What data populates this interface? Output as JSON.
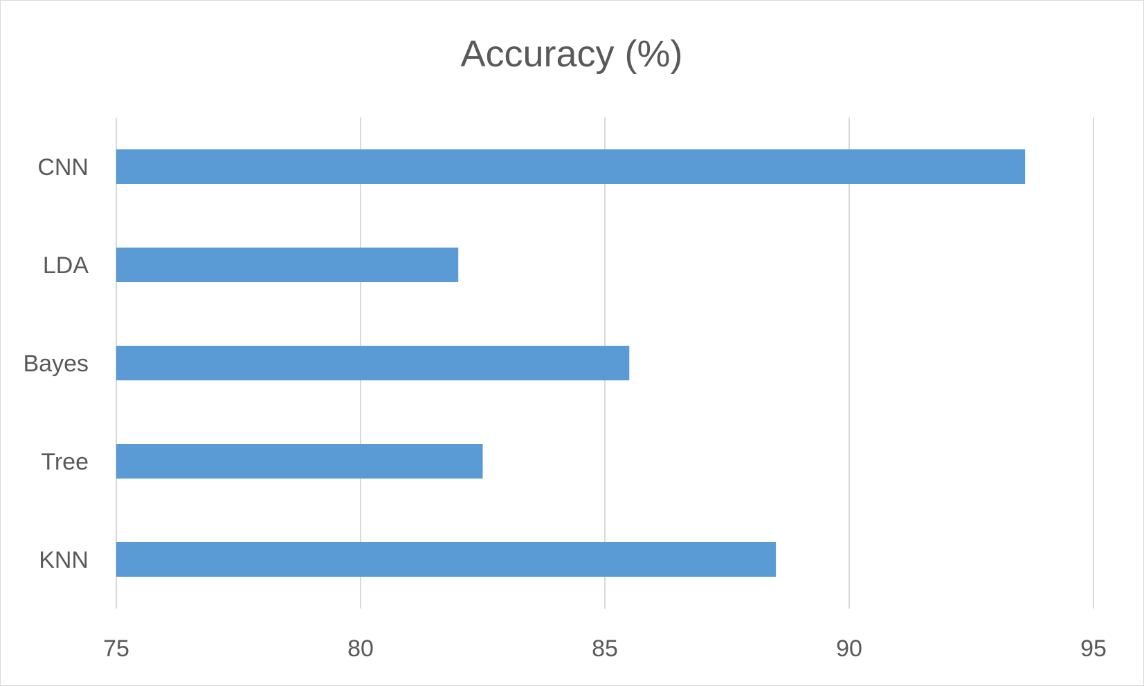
{
  "chart_data": {
    "type": "bar",
    "orientation": "horizontal",
    "title": "Accuracy (%)",
    "xlabel": "",
    "ylabel": "",
    "categories": [
      "CNN",
      "LDA",
      "Bayes",
      "Tree",
      "KNN"
    ],
    "values": [
      93.6,
      82.0,
      85.5,
      82.5,
      88.5
    ],
    "xlim": [
      75,
      95
    ],
    "xticks": [
      "75",
      "80",
      "85",
      "90",
      "95"
    ],
    "grid": "vertical",
    "bar_color": "#5b9bd5",
    "grid_color": "#d9d9d9",
    "text_color": "#595959"
  }
}
